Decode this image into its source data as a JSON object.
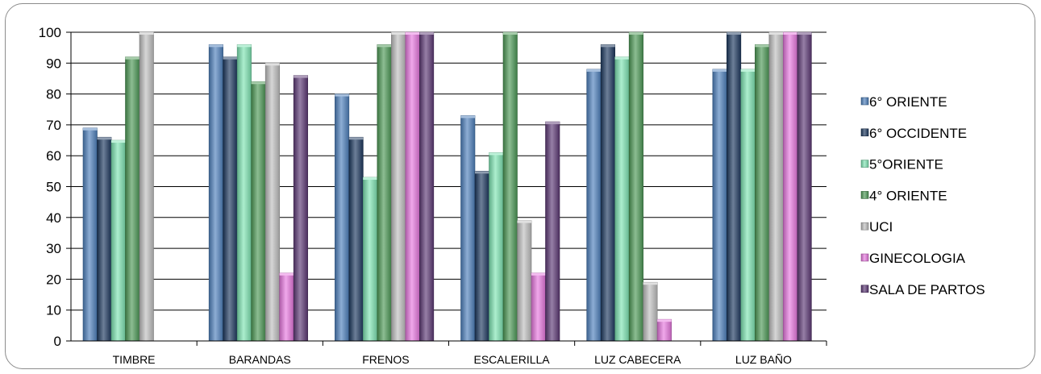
{
  "chart_data": {
    "type": "bar",
    "ylim": [
      0,
      100
    ],
    "yticks": [
      0,
      10,
      20,
      30,
      40,
      50,
      60,
      70,
      80,
      90,
      100
    ],
    "grid": true,
    "legend_position": "right",
    "categories": [
      "TIMBRE",
      "BARANDAS",
      "FRENOS",
      "ESCALERILLA",
      "LUZ CABECERA",
      "LUZ BAÑO"
    ],
    "series": [
      {
        "name": "6° ORIENTE",
        "color": "#4f81bd",
        "values": [
          69,
          96,
          80,
          73,
          88,
          88
        ]
      },
      {
        "name": "6° OCCIDENTE",
        "color": "#1f3a60",
        "values": [
          66,
          92,
          66,
          55,
          96,
          100
        ]
      },
      {
        "name": "5°ORIENTE",
        "color": "#7fe5b4",
        "values": [
          65,
          96,
          53,
          61,
          92,
          88
        ]
      },
      {
        "name": "4°  ORIENTE",
        "color": "#4e9a57",
        "values": [
          92,
          84,
          96,
          100,
          100,
          96
        ]
      },
      {
        "name": "UCI",
        "color": "#c0c0c0",
        "values": [
          100,
          90,
          100,
          39,
          19,
          100
        ]
      },
      {
        "name": "GINECOLOGIA",
        "color": "#e879e0",
        "values": [
          null,
          22,
          100,
          22,
          7,
          100
        ]
      },
      {
        "name": "SALA DE PARTOS",
        "color": "#5e3a76",
        "values": [
          null,
          86,
          100,
          71,
          null,
          100
        ]
      }
    ]
  }
}
